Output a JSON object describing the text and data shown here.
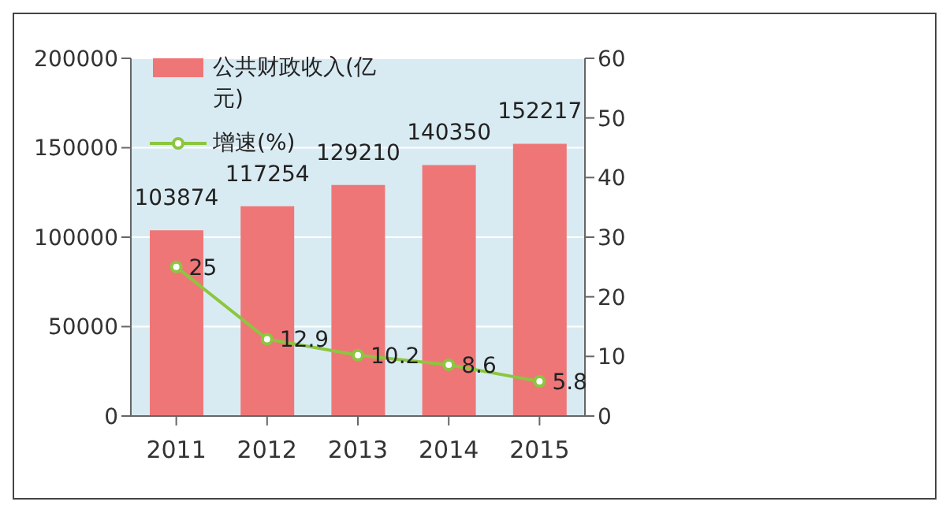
{
  "chart_data": {
    "type": "bar",
    "categories": [
      "2011",
      "2012",
      "2013",
      "2014",
      "2015"
    ],
    "series": [
      {
        "name": "公共财政收入(亿元)",
        "color": "#ef7677",
        "values": [
          103874,
          117254,
          129210,
          140350,
          152217
        ]
      },
      {
        "name": "增速(%)",
        "type": "line",
        "axis": "y2",
        "color": "#8cc63f",
        "marker": "circle",
        "values": [
          25,
          12.9,
          10.2,
          8.6,
          5.8
        ]
      }
    ],
    "ylim": [
      0,
      200000
    ],
    "yticks": [
      0,
      50000,
      100000,
      150000,
      200000
    ],
    "y2lim": [
      0,
      60
    ],
    "y2ticks": [
      0,
      10,
      20,
      30,
      40,
      50,
      60
    ],
    "grid": "y",
    "legend": "top left",
    "data_labels": true
  }
}
